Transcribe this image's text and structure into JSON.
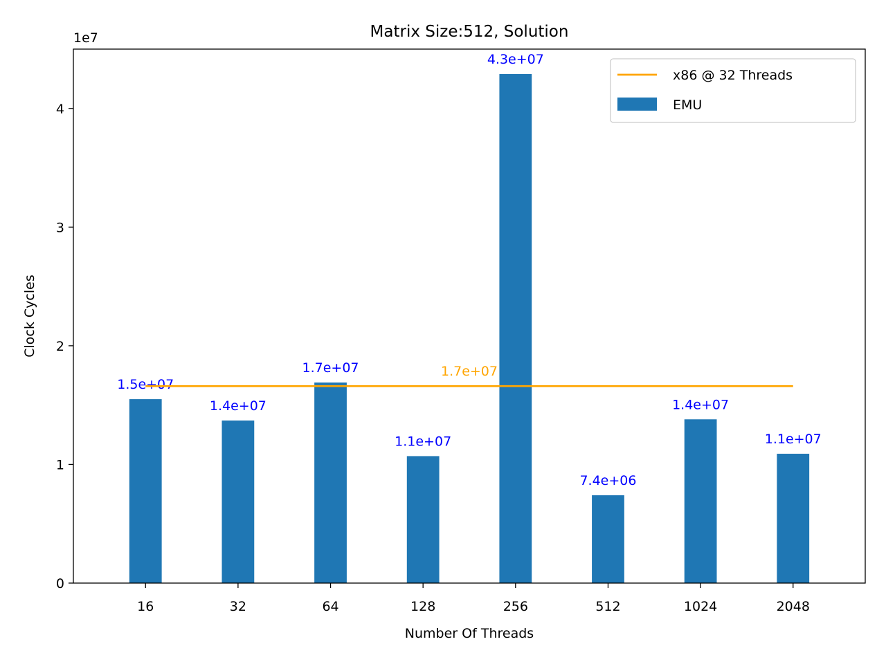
{
  "chart_data": {
    "type": "bar",
    "title": "Matrix Size:512, Solution",
    "xlabel": "Number Of Threads",
    "ylabel": "Clock Cycles",
    "y_scale_label": "1e7",
    "categories": [
      "16",
      "32",
      "64",
      "128",
      "256",
      "512",
      "1024",
      "2048"
    ],
    "series": [
      {
        "name": "EMU",
        "color": "#1f77b4",
        "values": [
          15500000,
          13700000,
          16900000,
          10700000,
          42900000,
          7400000,
          13800000,
          10900000
        ],
        "labels": [
          "1.5e+07",
          "1.4e+07",
          "1.7e+07",
          "1.1e+07",
          "4.3e+07",
          "7.4e+06",
          "1.4e+07",
          "1.1e+07"
        ],
        "label_color": "#0000ff"
      }
    ],
    "reference_line": {
      "name": "x86 @ 32 Threads",
      "color": "#ffa500",
      "value": 16600000,
      "label": "1.7e+07"
    },
    "ylim": [
      0,
      45000000
    ],
    "yticks": [
      0,
      10000000,
      20000000,
      30000000,
      40000000
    ],
    "ytick_labels": [
      "0",
      "1",
      "2",
      "3",
      "4"
    ],
    "grid": false,
    "legend_position": "top-right"
  }
}
